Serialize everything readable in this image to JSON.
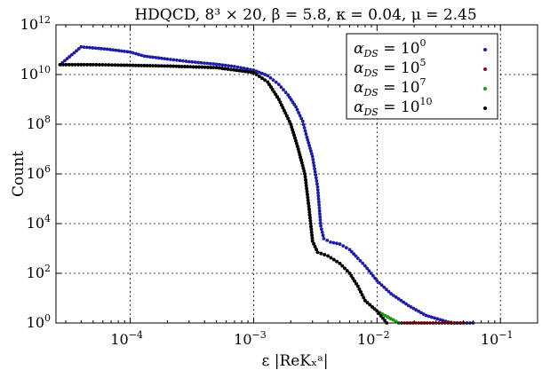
{
  "chart_data": {
    "type": "scatter",
    "title": "HDQCD, 8³ × 20, β = 5.8, κ = 0.04, μ = 2.45",
    "xlabel": "ε |ReKₓᵃ|",
    "ylabel": "Count",
    "x_scale": "log",
    "y_scale": "log",
    "xlim": [
      2.5e-05,
      0.2
    ],
    "ylim": [
      1,
      1000000000000
    ],
    "grid": true,
    "legend_position": "top-right",
    "x_ticks": [
      {
        "value": 0.0001,
        "base": "10",
        "exp": "−4"
      },
      {
        "value": 0.001,
        "base": "10",
        "exp": "−3"
      },
      {
        "value": 0.01,
        "base": "10",
        "exp": "−2"
      },
      {
        "value": 0.1,
        "base": "10",
        "exp": "−1"
      }
    ],
    "y_ticks": [
      {
        "value": 1,
        "base": "10",
        "exp": "0"
      },
      {
        "value": 100,
        "base": "10",
        "exp": "2"
      },
      {
        "value": 10000,
        "base": "10",
        "exp": "4"
      },
      {
        "value": 1000000,
        "base": "10",
        "exp": "6"
      },
      {
        "value": 100000000,
        "base": "10",
        "exp": "8"
      },
      {
        "value": 10000000000,
        "base": "10",
        "exp": "10"
      },
      {
        "value": 1000000000000,
        "base": "10",
        "exp": "12"
      }
    ],
    "series": [
      {
        "name": "α_DS = 10⁰",
        "legend_main": "α",
        "legend_sub": "DS",
        "legend_eq": " = 10",
        "legend_exp": "0",
        "color": "#1c1ca8",
        "points": [
          [
            2.7e-05,
            25000000000
          ],
          [
            4e-05,
            130000000000
          ],
          [
            6.5e-05,
            105000000000
          ],
          [
            0.0001,
            80000000000
          ],
          [
            0.00013,
            55000000000
          ],
          [
            0.0002,
            42000000000
          ],
          [
            0.0003,
            33000000000
          ],
          [
            0.0005,
            26000000000
          ],
          [
            0.0007,
            21000000000
          ],
          [
            0.001,
            15000000000
          ],
          [
            0.0013,
            9000000000
          ],
          [
            0.0016,
            4000000000
          ],
          [
            0.0019,
            1500000000
          ],
          [
            0.0022,
            500000000
          ],
          [
            0.0025,
            130000000
          ],
          [
            0.0027,
            30000000
          ],
          [
            0.003,
            5000000
          ],
          [
            0.0033,
            300000
          ],
          [
            0.0035,
            8000
          ],
          [
            0.0037,
            2500
          ],
          [
            0.0042,
            1800
          ],
          [
            0.005,
            1500
          ],
          [
            0.006,
            900
          ],
          [
            0.007,
            400
          ],
          [
            0.008,
            200
          ],
          [
            0.01,
            50
          ],
          [
            0.013,
            15
          ],
          [
            0.018,
            5
          ],
          [
            0.025,
            2
          ],
          [
            0.04,
            1
          ],
          [
            0.06,
            1
          ]
        ]
      },
      {
        "name": "α_DS = 10⁵",
        "legend_main": "α",
        "legend_sub": "DS",
        "legend_eq": " = 10",
        "legend_exp": "5",
        "color": "#8a1010",
        "points": [
          [
            2.7e-05,
            25000000000
          ],
          [
            5e-05,
            25000000000
          ],
          [
            8e-05,
            24000000000
          ],
          [
            0.0002,
            22000000000
          ],
          [
            0.0005,
            19000000000
          ],
          [
            0.001,
            12000000000
          ],
          [
            0.0013,
            5000000000
          ],
          [
            0.0016,
            1000000000
          ],
          [
            0.002,
            100000000
          ],
          [
            0.0023,
            10000000
          ],
          [
            0.0026,
            1000000
          ],
          [
            0.0028,
            50000
          ],
          [
            0.003,
            2000
          ],
          [
            0.0033,
            700
          ],
          [
            0.004,
            500
          ],
          [
            0.005,
            250
          ],
          [
            0.006,
            100
          ],
          [
            0.007,
            30
          ],
          [
            0.008,
            8
          ],
          [
            0.01,
            3
          ],
          [
            0.015,
            1
          ],
          [
            0.03,
            1
          ],
          [
            0.05,
            1
          ]
        ]
      },
      {
        "name": "α_DS = 10⁷",
        "legend_main": "α",
        "legend_sub": "DS",
        "legend_eq": " = 10",
        "legend_exp": "7",
        "color": "#11a011",
        "points": [
          [
            2.7e-05,
            25000000000
          ],
          [
            5e-05,
            25000000000
          ],
          [
            8e-05,
            24000000000
          ],
          [
            0.0002,
            22000000000
          ],
          [
            0.0005,
            19000000000
          ],
          [
            0.001,
            12000000000
          ],
          [
            0.0013,
            5000000000
          ],
          [
            0.0016,
            1000000000
          ],
          [
            0.002,
            100000000
          ],
          [
            0.0023,
            10000000
          ],
          [
            0.0026,
            1000000
          ],
          [
            0.0028,
            50000
          ],
          [
            0.003,
            2000
          ],
          [
            0.0033,
            700
          ],
          [
            0.004,
            500
          ],
          [
            0.005,
            250
          ],
          [
            0.006,
            100
          ],
          [
            0.007,
            30
          ],
          [
            0.008,
            8
          ],
          [
            0.01,
            3
          ],
          [
            0.015,
            1
          ]
        ]
      },
      {
        "name": "α_DS = 10¹⁰",
        "legend_main": "α",
        "legend_sub": "DS",
        "legend_eq": " = 10",
        "legend_exp": "10",
        "color": "#000000",
        "points": [
          [
            2.7e-05,
            25000000000
          ],
          [
            5e-05,
            25000000000
          ],
          [
            8e-05,
            24000000000
          ],
          [
            0.0002,
            22000000000
          ],
          [
            0.0005,
            19000000000
          ],
          [
            0.001,
            12000000000
          ],
          [
            0.0013,
            5000000000
          ],
          [
            0.0016,
            1000000000
          ],
          [
            0.002,
            100000000
          ],
          [
            0.0023,
            10000000
          ],
          [
            0.0026,
            1000000
          ],
          [
            0.0028,
            50000
          ],
          [
            0.003,
            2000
          ],
          [
            0.0033,
            700
          ],
          [
            0.004,
            500
          ],
          [
            0.005,
            250
          ],
          [
            0.006,
            100
          ],
          [
            0.007,
            30
          ],
          [
            0.008,
            8
          ],
          [
            0.01,
            3
          ],
          [
            0.012,
            1
          ]
        ]
      }
    ]
  }
}
